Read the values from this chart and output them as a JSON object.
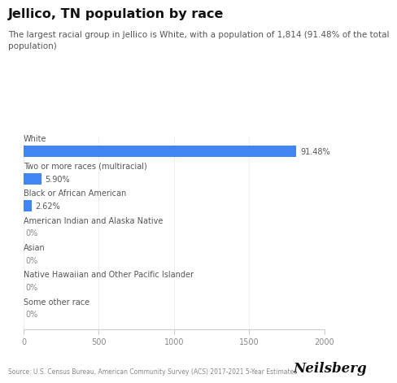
{
  "title": "Jellico, TN population by race",
  "subtitle": "The largest racial group in Jellico is White, with a population of 1,814 (91.48% of the total\npopulation)",
  "categories": [
    "White",
    "Two or more races (multiracial)",
    "Black or African American",
    "American Indian and Alaska Native",
    "Asian",
    "Native Hawaiian and Other Pacific Islander",
    "Some other race"
  ],
  "values": [
    1814,
    117,
    52,
    0,
    0,
    0,
    0
  ],
  "percentages": [
    "91.48%",
    "5.90%",
    "2.62%",
    "0%",
    "0%",
    "0%",
    "0%"
  ],
  "bar_color": "#4285F4",
  "xlim": [
    0,
    2000
  ],
  "xticks": [
    0,
    500,
    1000,
    1500,
    2000
  ],
  "source": "Source: U.S. Census Bureau, American Community Survey (ACS) 2017-2021 5-Year Estimates",
  "brand": "Neilsberg",
  "background_color": "#ffffff",
  "title_fontsize": 11.5,
  "subtitle_fontsize": 7.5,
  "category_fontsize": 7,
  "pct_fontsize": 7,
  "tick_fontsize": 7,
  "source_fontsize": 5.5,
  "brand_fontsize": 12
}
